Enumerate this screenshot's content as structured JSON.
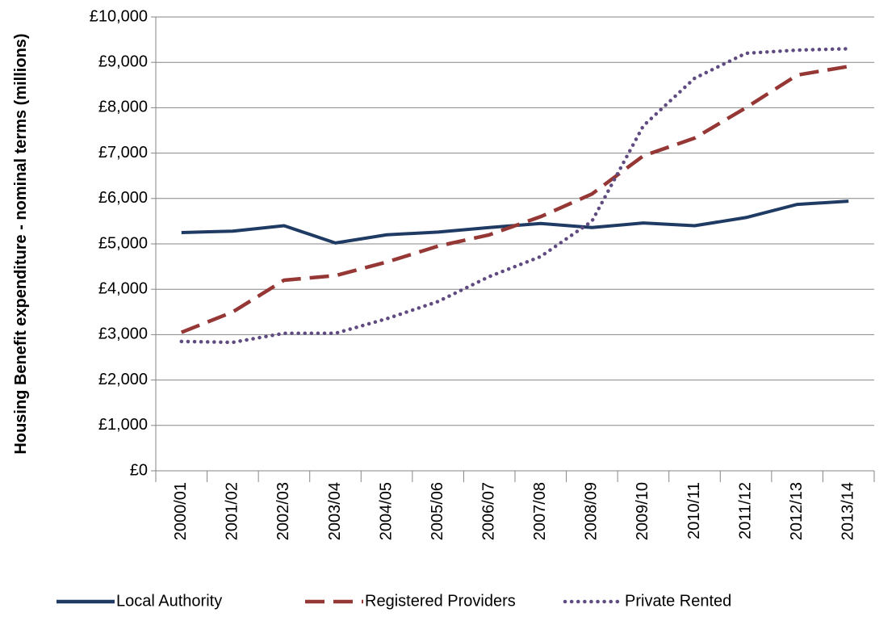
{
  "chart_data": {
    "type": "line",
    "ylabel": "Housing Benefit expenditure - nominal terms (millions)",
    "categories": [
      "2000/01",
      "2001/02",
      "2002/03",
      "2003/04",
      "2004/05",
      "2005/06",
      "2006/07",
      "2007/08",
      "2008/09",
      "2009/10",
      "2010/11",
      "2011/12",
      "2012/13",
      "2013/14"
    ],
    "series": [
      {
        "name": "Local Authority",
        "color": "#1f3b63",
        "style": "solid",
        "values": [
          5250,
          5280,
          5400,
          5020,
          5200,
          5260,
          5360,
          5450,
          5360,
          5460,
          5400,
          5580,
          5870,
          5940
        ]
      },
      {
        "name": "Registered Providers",
        "color": "#953735",
        "style": "dashed",
        "values": [
          3050,
          3500,
          4200,
          4300,
          4600,
          4950,
          5200,
          5600,
          6100,
          6940,
          7330,
          8000,
          8720,
          8910
        ]
      },
      {
        "name": "Private Rented",
        "color": "#5f4b80",
        "style": "dotted",
        "values": [
          2850,
          2830,
          3030,
          3030,
          3350,
          3730,
          4280,
          4720,
          5500,
          7600,
          8650,
          9200,
          9270,
          9300
        ]
      }
    ],
    "ylim": [
      0,
      10000
    ],
    "yticks": [
      {
        "value": 0,
        "label": "£0"
      },
      {
        "value": 1000,
        "label": "£1,000"
      },
      {
        "value": 2000,
        "label": "£2,000"
      },
      {
        "value": 3000,
        "label": "£3,000"
      },
      {
        "value": 4000,
        "label": "£4,000"
      },
      {
        "value": 5000,
        "label": "£5,000"
      },
      {
        "value": 6000,
        "label": "£6,000"
      },
      {
        "value": 7000,
        "label": "£7,000"
      },
      {
        "value": 8000,
        "label": "£8,000"
      },
      {
        "value": 9000,
        "label": "£9,000"
      },
      {
        "value": 10000,
        "label": "£10,000"
      }
    ],
    "grid": true,
    "legend": "bottom"
  }
}
